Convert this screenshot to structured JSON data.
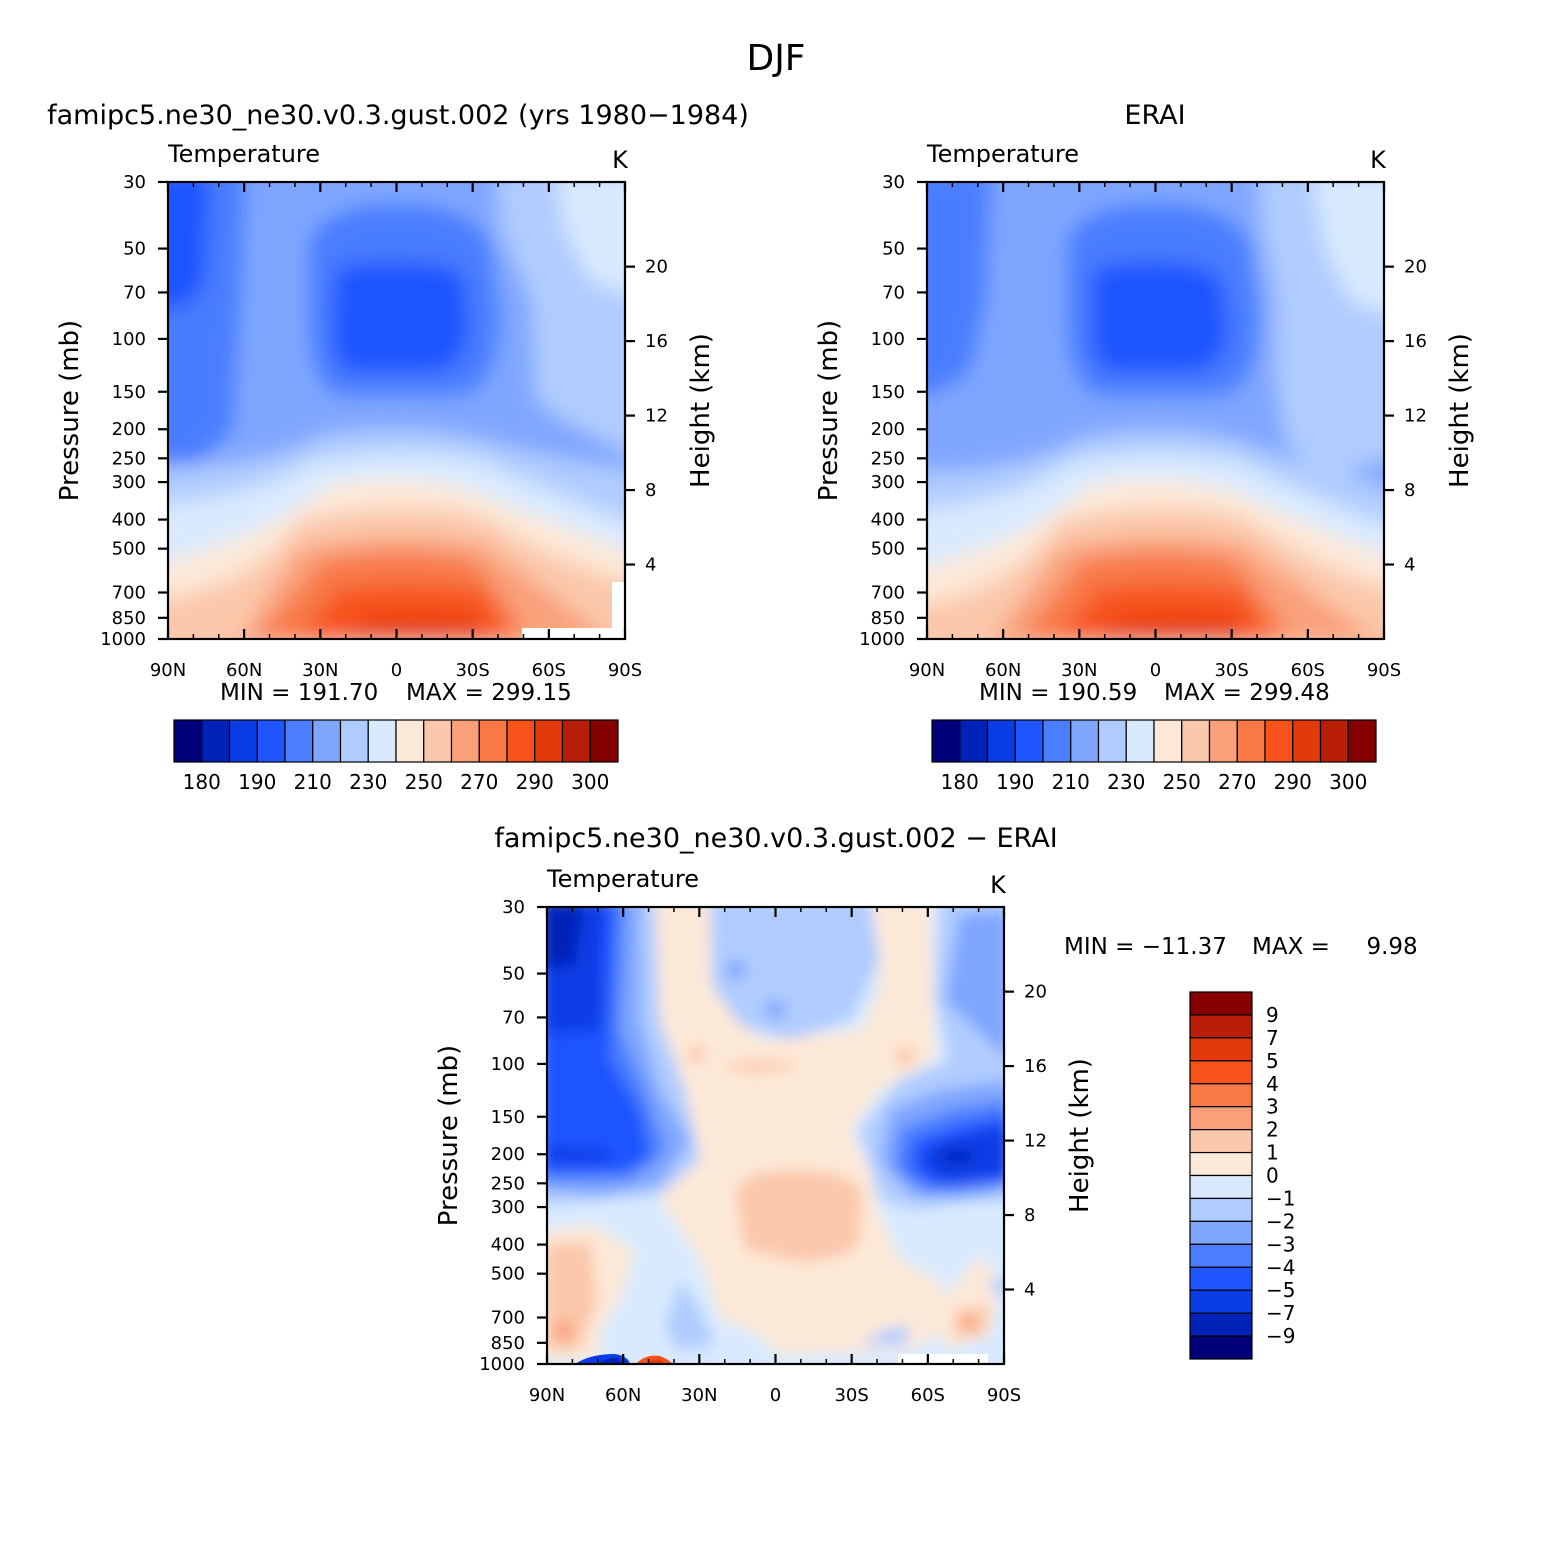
{
  "figure": {
    "title": "DJF",
    "palette_abs": [
      "#00007a",
      "#0022b8",
      "#0b3de6",
      "#1f55ff",
      "#4a7dff",
      "#7fa6ff",
      "#b0ccff",
      "#d9eaff",
      "#fde9d8",
      "#fbc8ab",
      "#f9a07a",
      "#f87846",
      "#f7521a",
      "#e33a0c",
      "#b81e08",
      "#860000"
    ],
    "palette_diff": [
      "#00007a",
      "#0022b8",
      "#0b3de6",
      "#1f55ff",
      "#4a7dff",
      "#7fa6ff",
      "#b0ccff",
      "#d9eaff",
      "#fde9d8",
      "#fbc8ab",
      "#f9a07a",
      "#f87846",
      "#f7521a",
      "#e33a0c",
      "#b81e08",
      "#860000"
    ]
  },
  "chart_data": [
    {
      "type": "heatmap",
      "title": "famipc5.ne30_ne30.v0.3.gust.002 (yrs 1980−1984)",
      "field_label": "Temperature",
      "units": "K",
      "ylabel": "Pressure (mb)",
      "y2label": "Height (km)",
      "x_ticks": [
        "90N",
        "60N",
        "30N",
        "0",
        "30S",
        "60S",
        "90S"
      ],
      "y_ticks": [
        "30",
        "50",
        "70",
        "100",
        "150",
        "200",
        "250",
        "300",
        "400",
        "500",
        "700",
        "850",
        "1000"
      ],
      "y2_ticks": [
        "20",
        "16",
        "12",
        "8",
        "4"
      ],
      "min_label": "MIN = 191.70",
      "max_label": "MAX = 299.15",
      "colorbar_labels": [
        "180",
        "190",
        "210",
        "230",
        "250",
        "270",
        "290",
        "300"
      ],
      "yscale": "log",
      "ylim": [
        1000,
        30
      ],
      "xlim": [
        "90N",
        "90S"
      ]
    },
    {
      "type": "heatmap",
      "title": "ERAI",
      "field_label": "Temperature",
      "units": "K",
      "ylabel": "Pressure (mb)",
      "y2label": "Height (km)",
      "x_ticks": [
        "90N",
        "60N",
        "30N",
        "0",
        "30S",
        "60S",
        "90S"
      ],
      "y_ticks": [
        "30",
        "50",
        "70",
        "100",
        "150",
        "200",
        "250",
        "300",
        "400",
        "500",
        "700",
        "850",
        "1000"
      ],
      "y2_ticks": [
        "20",
        "16",
        "12",
        "8",
        "4"
      ],
      "min_label": "MIN = 190.59",
      "max_label": "MAX = 299.48",
      "colorbar_labels": [
        "180",
        "190",
        "210",
        "230",
        "250",
        "270",
        "290",
        "300"
      ],
      "yscale": "log",
      "ylim": [
        1000,
        30
      ],
      "xlim": [
        "90N",
        "90S"
      ]
    },
    {
      "type": "heatmap",
      "title": "famipc5.ne30_ne30.v0.3.gust.002 − ERAI",
      "field_label": "Temperature",
      "units": "K",
      "ylabel": "Pressure (mb)",
      "y2label": "Height (km)",
      "x_ticks": [
        "90N",
        "60N",
        "30N",
        "0",
        "30S",
        "60S",
        "90S"
      ],
      "y_ticks": [
        "30",
        "50",
        "70",
        "100",
        "150",
        "200",
        "250",
        "300",
        "400",
        "500",
        "700",
        "850",
        "1000"
      ],
      "y2_ticks": [
        "20",
        "16",
        "12",
        "8",
        "4"
      ],
      "min_label": "MIN = −11.37",
      "max_label": "MAX =     9.98",
      "colorbar_labels": [
        "9",
        "7",
        "5",
        "4",
        "3",
        "2",
        "1",
        "0",
        "−1",
        "−2",
        "−3",
        "−4",
        "−5",
        "−7",
        "−9"
      ],
      "yscale": "log",
      "ylim": [
        1000,
        30
      ],
      "xlim": [
        "90N",
        "90S"
      ]
    }
  ]
}
